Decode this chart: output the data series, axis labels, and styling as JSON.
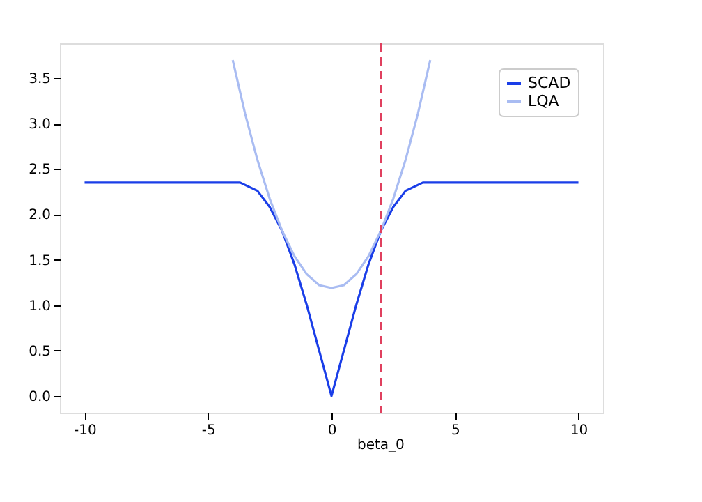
{
  "chart_data": {
    "type": "line",
    "xlim": [
      -11,
      11
    ],
    "xticks": [
      -10,
      -5,
      0,
      5,
      10
    ],
    "ylim": [
      -0.185,
      3.885
    ],
    "yticks": [
      {
        "value": 0,
        "label": "0.0"
      },
      0.5,
      {
        "value": 1,
        "label": "1.0"
      },
      1.5,
      {
        "value": 2,
        "label": "2.0"
      },
      2.5,
      {
        "value": 3,
        "label": "3.0"
      },
      3.5
    ],
    "grid": false,
    "legend": "top right",
    "line_style": "solid",
    "marker": "none",
    "series": [
      {
        "name": "SCAD",
        "color": "#1a3ee8",
        "x": [
          -10,
          -3.7,
          -3,
          -2.5,
          -2,
          -1.5,
          -1,
          -0.5,
          0,
          0.5,
          1,
          1.5,
          2,
          2.5,
          3,
          3.7,
          10
        ],
        "values": [
          2.35,
          2.35,
          2.26,
          2.08,
          1.82,
          1.45,
          1.0,
          0.5,
          0.0,
          0.5,
          1.0,
          1.45,
          1.82,
          2.08,
          2.26,
          2.35,
          2.35
        ]
      },
      {
        "name": "LQA",
        "color": "#a9bcf2",
        "x": [
          -4,
          -3.5,
          -3,
          -2.5,
          -2,
          -1.5,
          -1,
          -0.5,
          0,
          0.5,
          1,
          1.5,
          2,
          2.5,
          3,
          3.5,
          4
        ],
        "values": [
          3.7,
          3.11,
          2.6,
          2.17,
          1.82,
          1.54,
          1.34,
          1.22,
          1.19,
          1.22,
          1.34,
          1.54,
          1.82,
          2.17,
          2.6,
          3.11,
          3.7
        ]
      }
    ],
    "ref_lines": [
      {
        "axis": "x",
        "value": 2,
        "label": "beta_0",
        "color": "#e0405e",
        "line_style": "dashed"
      }
    ]
  }
}
